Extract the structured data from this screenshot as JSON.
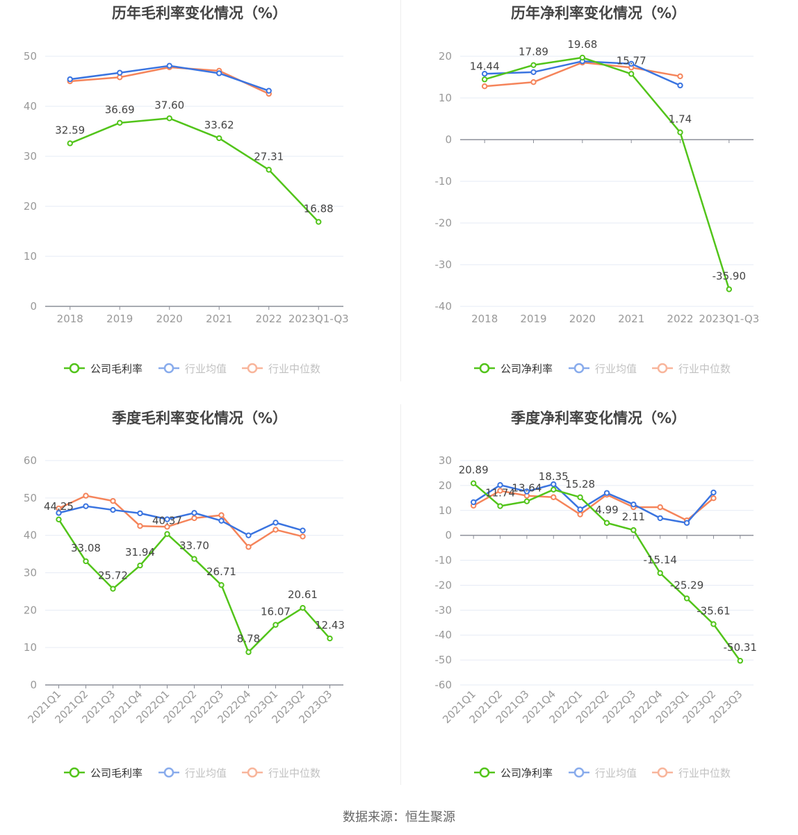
{
  "footer": {
    "source": "数据来源：恒生聚源"
  },
  "chart_data": [
    {
      "type": "line",
      "title": "历年毛利率变化情况（%）",
      "xlabel": "",
      "ylabel": "",
      "categories": [
        "2018",
        "2019",
        "2020",
        "2021",
        "2022",
        "2023Q1-Q3"
      ],
      "ylim": [
        0,
        50
      ],
      "yticks": [
        0,
        10,
        20,
        30,
        40,
        50
      ],
      "rotate_labels": false,
      "grid": true,
      "legend_position": "bottom",
      "series": [
        {
          "name": "公司毛利率",
          "color": "#52c41a",
          "values": [
            32.59,
            36.69,
            37.6,
            33.62,
            27.31,
            16.88
          ],
          "labels": [
            "32.59",
            "36.69",
            "37.60",
            "33.62",
            "27.31",
            "16.88"
          ]
        },
        {
          "name": "行业均值",
          "color": "#3a74e0",
          "values": [
            45.4,
            46.7,
            48.1,
            46.6,
            43.1,
            null
          ]
        },
        {
          "name": "行业中位数",
          "color": "#f5845a",
          "values": [
            45.0,
            45.8,
            47.8,
            47.1,
            42.5,
            null
          ]
        }
      ]
    },
    {
      "type": "line",
      "title": "历年净利率变化情况（%）",
      "xlabel": "",
      "ylabel": "",
      "categories": [
        "2018",
        "2019",
        "2020",
        "2021",
        "2022",
        "2023Q1-Q3"
      ],
      "ylim": [
        -40,
        20
      ],
      "yticks": [
        -40,
        -30,
        -20,
        -10,
        0,
        10,
        20
      ],
      "rotate_labels": false,
      "grid": true,
      "legend_position": "bottom",
      "series": [
        {
          "name": "公司净利率",
          "color": "#52c41a",
          "values": [
            14.44,
            17.89,
            19.68,
            15.77,
            1.74,
            -35.9
          ],
          "labels": [
            "14.44",
            "17.89",
            "19.68",
            "15.77",
            "1.74",
            "-35.90"
          ]
        },
        {
          "name": "行业均值",
          "color": "#3a74e0",
          "values": [
            15.8,
            16.2,
            18.8,
            18.2,
            13.0,
            null
          ]
        },
        {
          "name": "行业中位数",
          "color": "#f5845a",
          "values": [
            12.8,
            13.8,
            18.5,
            17.3,
            15.2,
            null
          ]
        }
      ]
    },
    {
      "type": "line",
      "title": "季度毛利率变化情况（%）",
      "xlabel": "",
      "ylabel": "",
      "categories": [
        "2021Q1",
        "2021Q2",
        "2021Q3",
        "2021Q4",
        "2022Q1",
        "2022Q2",
        "2022Q3",
        "2022Q4",
        "2023Q1",
        "2023Q2",
        "2023Q3"
      ],
      "ylim": [
        0,
        60
      ],
      "yticks": [
        0,
        10,
        20,
        30,
        40,
        50,
        60
      ],
      "rotate_labels": true,
      "grid": true,
      "legend_position": "bottom",
      "series": [
        {
          "name": "公司毛利率",
          "color": "#52c41a",
          "values": [
            44.25,
            33.08,
            25.72,
            31.94,
            40.37,
            33.7,
            26.71,
            8.78,
            16.07,
            20.61,
            12.43
          ],
          "labels": [
            "44.25",
            "33.08",
            "25.72",
            "31.94",
            "40.37",
            "33.70",
            "26.71",
            "8.78",
            "16.07",
            "20.61",
            "12.43"
          ]
        },
        {
          "name": "行业均值",
          "color": "#3a74e0",
          "values": [
            46.0,
            47.8,
            46.8,
            45.9,
            44.3,
            46.0,
            43.9,
            40.0,
            43.4,
            41.3,
            null
          ]
        },
        {
          "name": "行业中位数",
          "color": "#f5845a",
          "values": [
            47.2,
            50.6,
            49.2,
            42.5,
            42.3,
            44.6,
            45.4,
            36.9,
            41.5,
            39.7,
            null
          ]
        }
      ]
    },
    {
      "type": "line",
      "title": "季度净利率变化情况（%）",
      "xlabel": "",
      "ylabel": "",
      "categories": [
        "2021Q1",
        "2021Q2",
        "2021Q3",
        "2021Q4",
        "2022Q1",
        "2022Q2",
        "2022Q3",
        "2022Q4",
        "2023Q1",
        "2023Q2",
        "2023Q3"
      ],
      "ylim": [
        -60,
        30
      ],
      "yticks": [
        -60,
        -50,
        -40,
        -30,
        -20,
        -10,
        0,
        10,
        20,
        30
      ],
      "rotate_labels": true,
      "grid": true,
      "legend_position": "bottom",
      "series": [
        {
          "name": "公司净利率",
          "color": "#52c41a",
          "values": [
            20.89,
            11.74,
            13.64,
            18.35,
            15.28,
            4.99,
            2.11,
            -15.14,
            -25.29,
            -35.61,
            -50.31
          ],
          "labels": [
            "20.89",
            "11.74",
            "13.64",
            "18.35",
            "15.28",
            "4.99",
            "2.11",
            "-15.14",
            "-25.29",
            "-35.61",
            "-50.31"
          ]
        },
        {
          "name": "行业均值",
          "color": "#3a74e0",
          "values": [
            13.3,
            20.2,
            17.6,
            20.5,
            10.4,
            17.0,
            12.4,
            6.9,
            5.0,
            17.2,
            null
          ]
        },
        {
          "name": "行业中位数",
          "color": "#f5845a",
          "values": [
            11.9,
            17.9,
            15.9,
            15.3,
            8.4,
            16.3,
            11.3,
            11.3,
            6.0,
            14.9,
            null
          ]
        }
      ]
    }
  ]
}
